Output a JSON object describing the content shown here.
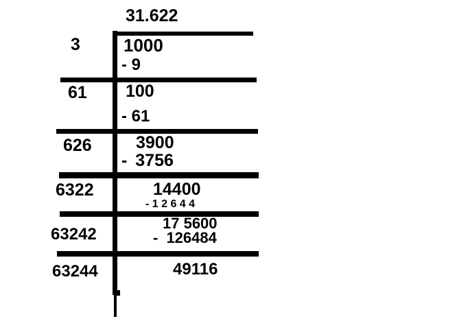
{
  "division": {
    "quotient": "31.622",
    "steps": [
      {
        "divisor": "3",
        "value": "1000",
        "subtraction": "- 9"
      },
      {
        "divisor": "61",
        "value": "100",
        "subtraction": "- 61"
      },
      {
        "divisor": "626",
        "value": "3900",
        "subtraction": "- 3756"
      },
      {
        "divisor": "6322",
        "value": "14400",
        "subtraction": "- 1 2 6 4 4"
      },
      {
        "divisor": "63242",
        "value": "17 5600",
        "subtraction": "- 126484"
      },
      {
        "divisor": "63244",
        "value": "49116"
      }
    ],
    "colors": {
      "ink": "#000000",
      "background": "#ffffff"
    }
  }
}
